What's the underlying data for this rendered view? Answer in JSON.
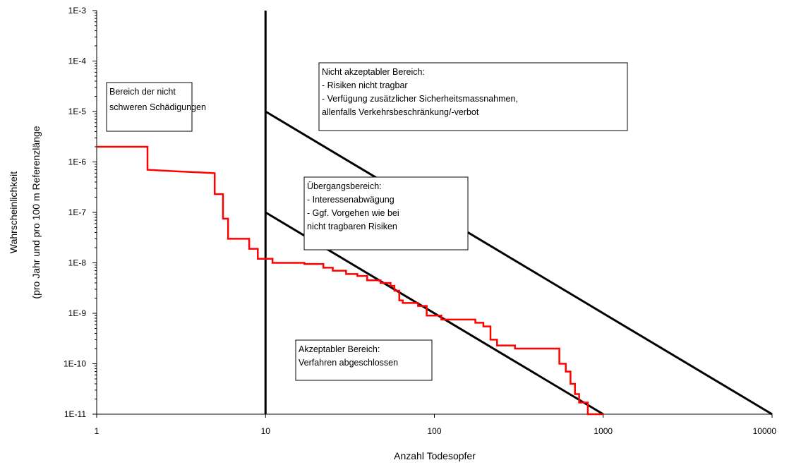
{
  "chart_data": {
    "type": "line",
    "xscale": "log",
    "yscale": "log",
    "xlabel": "Anzahl Todesopfer",
    "ylabel_line1": "Wahrscheinlichkeit",
    "ylabel_line2": "(pro Jahr und pro 100 m Referenzlänge",
    "xlim": [
      1,
      10000
    ],
    "ylim": [
      1e-11,
      0.001
    ],
    "x_ticks": [
      {
        "value": 1,
        "label": "1"
      },
      {
        "value": 10,
        "label": "10"
      },
      {
        "value": 100,
        "label": "100"
      },
      {
        "value": 1000,
        "label": "1000"
      },
      {
        "value": 10000,
        "label": "10000"
      }
    ],
    "y_ticks": [
      {
        "value": 0.001,
        "label": "1E-3"
      },
      {
        "value": 0.0001,
        "label": "1E-4"
      },
      {
        "value": 1e-05,
        "label": "1E-5"
      },
      {
        "value": 1e-06,
        "label": "1E-6"
      },
      {
        "value": 1e-07,
        "label": "1E-7"
      },
      {
        "value": 1e-08,
        "label": "1E-8"
      },
      {
        "value": 1e-09,
        "label": "1E-9"
      },
      {
        "value": 1e-10,
        "label": "1E-10"
      },
      {
        "value": 1e-11,
        "label": "1E-11"
      }
    ],
    "colors": {
      "risk_curve": "#ff0000",
      "criteria_lines": "#000000"
    },
    "series": [
      {
        "color": "#ff0000",
        "style": "step",
        "points": [
          [
            1,
            2e-06
          ],
          [
            2,
            2e-06
          ],
          [
            2,
            7e-07
          ],
          [
            3,
            6.5e-07
          ],
          [
            4,
            6.2e-07
          ],
          [
            5,
            6e-07
          ],
          [
            5,
            2.3e-07
          ],
          [
            5.6,
            2.3e-07
          ],
          [
            5.6,
            7.5e-08
          ],
          [
            6,
            7.5e-08
          ],
          [
            6,
            3e-08
          ],
          [
            8,
            3e-08
          ],
          [
            8,
            1.9e-08
          ],
          [
            9,
            1.9e-08
          ],
          [
            9,
            1.2e-08
          ],
          [
            11,
            1.2e-08
          ],
          [
            11,
            1e-08
          ],
          [
            17,
            1e-08
          ],
          [
            17,
            9.5e-09
          ],
          [
            22,
            9.5e-09
          ],
          [
            22,
            8e-09
          ],
          [
            25,
            8e-09
          ],
          [
            25,
            7e-09
          ],
          [
            30,
            7e-09
          ],
          [
            30,
            6e-09
          ],
          [
            35,
            6e-09
          ],
          [
            35,
            5.5e-09
          ],
          [
            40,
            5.5e-09
          ],
          [
            40,
            4.5e-09
          ],
          [
            48,
            4.5e-09
          ],
          [
            48,
            4e-09
          ],
          [
            55,
            4e-09
          ],
          [
            55,
            3.5e-09
          ],
          [
            58,
            3.5e-09
          ],
          [
            58,
            2.8e-09
          ],
          [
            62,
            2.8e-09
          ],
          [
            62,
            1.8e-09
          ],
          [
            65,
            1.8e-09
          ],
          [
            65,
            1.6e-09
          ],
          [
            80,
            1.6e-09
          ],
          [
            80,
            1.4e-09
          ],
          [
            90,
            1.4e-09
          ],
          [
            90,
            9e-10
          ],
          [
            110,
            9e-10
          ],
          [
            110,
            7.5e-10
          ],
          [
            175,
            7.5e-10
          ],
          [
            175,
            6.5e-10
          ],
          [
            195,
            6.5e-10
          ],
          [
            195,
            5.5e-10
          ],
          [
            215,
            5.5e-10
          ],
          [
            215,
            3e-10
          ],
          [
            235,
            3e-10
          ],
          [
            235,
            2.3e-10
          ],
          [
            300,
            2.3e-10
          ],
          [
            300,
            2e-10
          ],
          [
            550,
            2e-10
          ],
          [
            550,
            1e-10
          ],
          [
            600,
            1e-10
          ],
          [
            600,
            7e-11
          ],
          [
            640,
            7e-11
          ],
          [
            640,
            4e-11
          ],
          [
            680,
            4e-11
          ],
          [
            680,
            2.5e-11
          ],
          [
            720,
            2.5e-11
          ],
          [
            720,
            1.7e-11
          ],
          [
            810,
            1.7e-11
          ],
          [
            810,
            1e-11
          ],
          [
            1000,
            1e-11
          ]
        ]
      }
    ],
    "criteria_lines": [
      {
        "from": [
          10,
          1e-05
        ],
        "to": [
          10000,
          1e-11
        ]
      },
      {
        "from": [
          10,
          1e-07
        ],
        "to": [
          1000,
          1e-11
        ]
      }
    ],
    "vertical_line_x": 10,
    "annotations": [
      {
        "id": "nicht-schwer",
        "lines": [
          "Bereich der nicht",
          "schweren Schädigungen"
        ]
      },
      {
        "id": "nicht-akzeptabel",
        "lines": [
          "Nicht akzeptabler Bereich:",
          "- Risiken nicht tragbar",
          "- Verfügung zusätzlicher Sicherheitsmassnahmen,",
          "  allenfalls Verkehrsbeschränkung/-verbot"
        ]
      },
      {
        "id": "uebergang",
        "lines": [
          "Übergangsbereich:",
          "- Interessenabwägung",
          "- Ggf. Vorgehen wie bei",
          "  nicht  tragbaren Risiken"
        ]
      },
      {
        "id": "akzeptabel",
        "lines": [
          "Akzeptabler Bereich:",
          "Verfahren abgeschlossen"
        ]
      }
    ]
  }
}
